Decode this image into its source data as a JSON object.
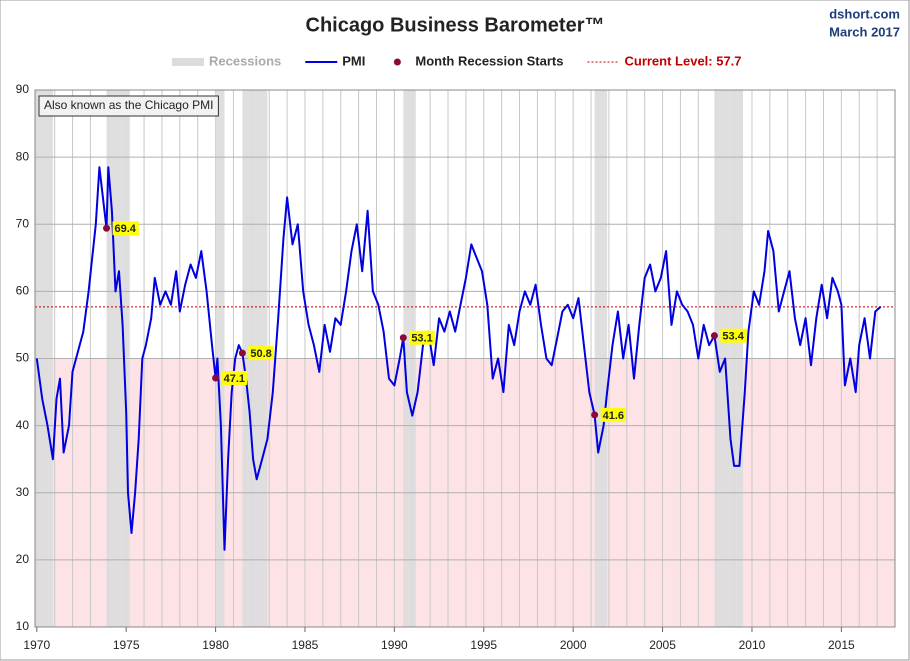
{
  "chart_data": {
    "type": "line",
    "title": "Chicago Business Barometer™",
    "source": "dshort.com",
    "date": "March 2017",
    "annotation": "Also known as the Chicago PMI",
    "xlim": [
      1969.9,
      2018.0
    ],
    "xticks": [
      1970,
      1975,
      1980,
      1985,
      1990,
      1995,
      2000,
      2005,
      2010,
      2015
    ],
    "x_minor_grid": 1,
    "ylim": [
      10,
      90
    ],
    "yticks": [
      10,
      20,
      30,
      40,
      50,
      60,
      70,
      80,
      90
    ],
    "grid": true,
    "shade_below": {
      "value": 50,
      "color": "#fde3e6"
    },
    "recessions": {
      "name": "Recessions",
      "color": "#dcdcdc",
      "ranges": [
        [
          1969.9,
          1970.9
        ],
        [
          1973.9,
          1975.2
        ],
        [
          1980.0,
          1980.5
        ],
        [
          1981.5,
          1982.9
        ],
        [
          1990.5,
          1991.2
        ],
        [
          2001.2,
          2001.9
        ],
        [
          2007.9,
          2009.5
        ]
      ]
    },
    "reference_line": {
      "label": "Current Level: 57.7",
      "value": 57.7,
      "color": "#c00000"
    },
    "series": [
      {
        "name": "PMI",
        "color": "#0000e0",
        "x": [
          1970.0,
          1970.3,
          1970.6,
          1970.9,
          1971.1,
          1971.3,
          1971.5,
          1971.8,
          1972.0,
          1972.3,
          1972.6,
          1972.9,
          1973.1,
          1973.3,
          1973.5,
          1973.7,
          1973.9,
          1974.0,
          1974.2,
          1974.4,
          1974.6,
          1974.8,
          1975.0,
          1975.1,
          1975.3,
          1975.5,
          1975.7,
          1975.9,
          1976.1,
          1976.4,
          1976.6,
          1976.9,
          1977.2,
          1977.5,
          1977.8,
          1978.0,
          1978.3,
          1978.6,
          1978.9,
          1979.2,
          1979.5,
          1979.8,
          1980.0,
          1980.1,
          1980.3,
          1980.5,
          1980.7,
          1980.9,
          1981.1,
          1981.3,
          1981.5,
          1981.7,
          1981.9,
          1982.1,
          1982.3,
          1982.6,
          1982.9,
          1983.2,
          1983.5,
          1983.8,
          1984.0,
          1984.3,
          1984.6,
          1984.9,
          1985.2,
          1985.5,
          1985.8,
          1986.1,
          1986.4,
          1986.7,
          1987.0,
          1987.3,
          1987.6,
          1987.9,
          1988.2,
          1988.5,
          1988.8,
          1989.1,
          1989.4,
          1989.7,
          1990.0,
          1990.3,
          1990.5,
          1990.7,
          1991.0,
          1991.3,
          1991.6,
          1991.9,
          1992.2,
          1992.5,
          1992.8,
          1993.1,
          1993.4,
          1993.7,
          1994.0,
          1994.3,
          1994.6,
          1994.9,
          1995.2,
          1995.5,
          1995.8,
          1996.1,
          1996.4,
          1996.7,
          1997.0,
          1997.3,
          1997.6,
          1997.9,
          1998.2,
          1998.5,
          1998.8,
          1999.1,
          1999.4,
          1999.7,
          2000.0,
          2000.3,
          2000.6,
          2000.9,
          2001.2,
          2001.4,
          2001.7,
          2001.9,
          2002.2,
          2002.5,
          2002.8,
          2003.1,
          2003.4,
          2003.7,
          2004.0,
          2004.3,
          2004.6,
          2004.9,
          2005.2,
          2005.5,
          2005.8,
          2006.1,
          2006.4,
          2006.7,
          2007.0,
          2007.3,
          2007.6,
          2007.9,
          2008.2,
          2008.5,
          2008.8,
          2009.0,
          2009.3,
          2009.6,
          2009.8,
          2010.1,
          2010.4,
          2010.7,
          2010.9,
          2011.2,
          2011.5,
          2011.8,
          2012.1,
          2012.4,
          2012.7,
          2013.0,
          2013.3,
          2013.6,
          2013.9,
          2014.2,
          2014.5,
          2014.8,
          2015.0,
          2015.2,
          2015.5,
          2015.8,
          2016.0,
          2016.3,
          2016.6,
          2016.9,
          2017.2
        ],
        "values": [
          50,
          44,
          40,
          35,
          44,
          47,
          36,
          40,
          48,
          51,
          54,
          60,
          65,
          70,
          78.5,
          74,
          69.4,
          78.5,
          72,
          60,
          63,
          55,
          42,
          30,
          24,
          30,
          38,
          50,
          52,
          56,
          62,
          58,
          60,
          58,
          63,
          57,
          61,
          64,
          62,
          66,
          60,
          52,
          47.1,
          50,
          40,
          21.5,
          35,
          45,
          50,
          52,
          50.8,
          47,
          42,
          35,
          32,
          35,
          38,
          45,
          56,
          68,
          74,
          67,
          70,
          60,
          55,
          52,
          48,
          55,
          51,
          56,
          55,
          60,
          66,
          70,
          63,
          72,
          60,
          58,
          54,
          47,
          46,
          50,
          53.1,
          45,
          41.5,
          45,
          52,
          54,
          49,
          56,
          54,
          57,
          54,
          58,
          62,
          67,
          65,
          63,
          58,
          47,
          50,
          45,
          55,
          52,
          57,
          60,
          58,
          61,
          55,
          50,
          49,
          53,
          57,
          58,
          56,
          59,
          52,
          45,
          41.6,
          36,
          40,
          45,
          52,
          57,
          50,
          55,
          47,
          55,
          62,
          64,
          60,
          62,
          66,
          55,
          60,
          58,
          57,
          55,
          50,
          55,
          52,
          53.4,
          48,
          50,
          38,
          34,
          34,
          45,
          54,
          60,
          58,
          63,
          69,
          66,
          57,
          60,
          63,
          56,
          52,
          56,
          49,
          56,
          61,
          56,
          62,
          60,
          58,
          46,
          50,
          45,
          52,
          56,
          50,
          57,
          57.7
        ]
      },
      {
        "name": "Month Recession Starts",
        "color": "#8b0a3a",
        "x": [
          1973.9,
          1980.0,
          1981.5,
          1990.5,
          2001.2,
          2007.9
        ],
        "values": [
          69.4,
          47.1,
          50.8,
          53.1,
          41.6,
          53.4
        ]
      }
    ]
  }
}
